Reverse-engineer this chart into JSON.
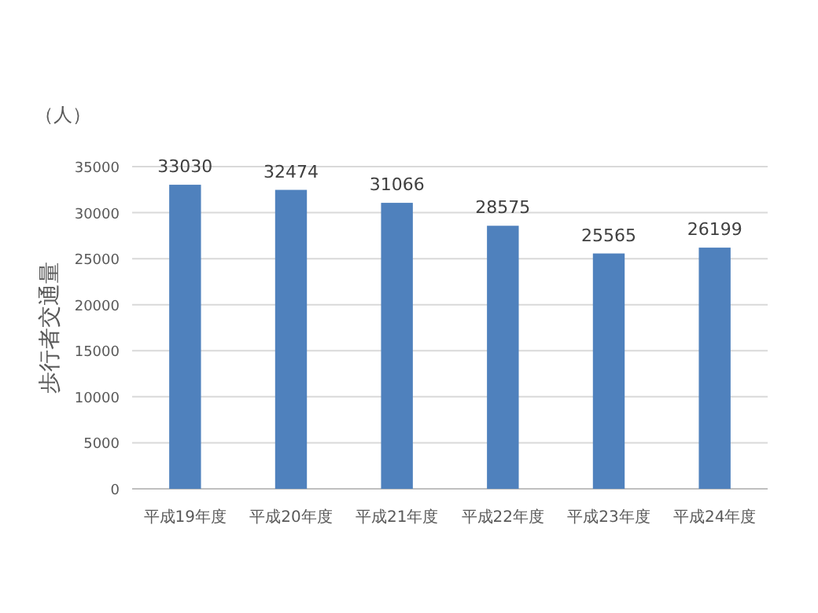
{
  "chart_data": {
    "type": "bar",
    "ylabel": "歩行者交通量",
    "annotations": [
      "（人）"
    ],
    "categories": [
      "平成19年度",
      "平成20年度",
      "平成21年度",
      "平成22年度",
      "平成23年度",
      "平成24年度"
    ],
    "values": [
      33030,
      32474,
      31066,
      28575,
      25565,
      26199
    ],
    "color": "#4f81bd",
    "ylim": [
      0,
      35000
    ],
    "yticks": [
      0,
      5000,
      10000,
      15000,
      20000,
      25000,
      30000,
      35000
    ],
    "grid": "y",
    "data_labels": true
  }
}
